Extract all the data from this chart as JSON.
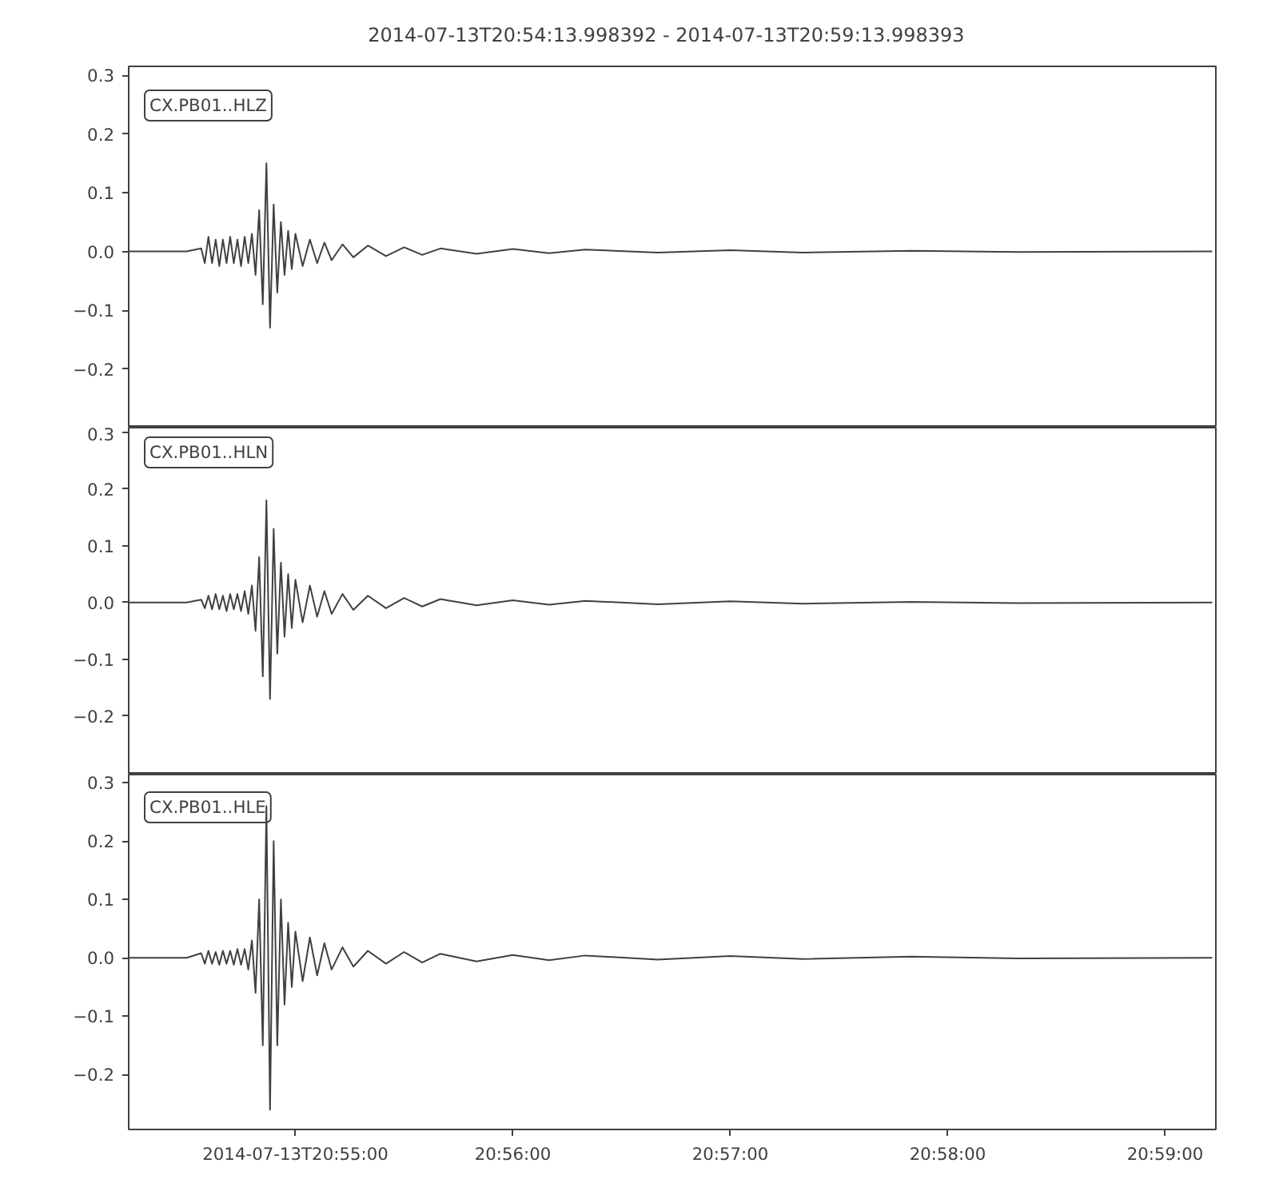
{
  "chart_data": [
    {
      "type": "line",
      "title": "2014-07-13T20:54:13.998392  -  2014-07-13T20:59:13.998393",
      "annotations": [
        "CX.PB01..HLZ"
      ],
      "tick_labels": "y",
      "grid": false,
      "xlim": [
        "2014-07-13T20:54:13.998392",
        "2014-07-13T20:59:13.998393"
      ],
      "ylim": [
        -0.3,
        0.315
      ],
      "yticks": [
        {
          "value": -0.2,
          "label": "−0.2"
        },
        {
          "value": -0.1,
          "label": "−0.1"
        },
        {
          "value": 0,
          "label": "0.0"
        },
        {
          "value": 0.1,
          "label": "0.1"
        },
        {
          "value": 0.2,
          "label": "0.2"
        },
        {
          "value": 0.3,
          "label": "0.3"
        }
      ],
      "x": [
        "2014-07-13T20:54:14",
        "2014-07-13T20:54:30",
        "2014-07-13T20:54:34",
        "2014-07-13T20:54:35",
        "2014-07-13T20:54:36",
        "2014-07-13T20:54:37",
        "2014-07-13T20:54:38",
        "2014-07-13T20:54:39",
        "2014-07-13T20:54:40",
        "2014-07-13T20:54:41",
        "2014-07-13T20:54:42",
        "2014-07-13T20:54:43",
        "2014-07-13T20:54:44",
        "2014-07-13T20:54:45",
        "2014-07-13T20:54:46",
        "2014-07-13T20:54:47",
        "2014-07-13T20:54:48",
        "2014-07-13T20:54:49",
        "2014-07-13T20:54:50",
        "2014-07-13T20:54:51",
        "2014-07-13T20:54:52",
        "2014-07-13T20:54:53",
        "2014-07-13T20:54:54",
        "2014-07-13T20:54:55",
        "2014-07-13T20:54:56",
        "2014-07-13T20:54:57",
        "2014-07-13T20:54:58",
        "2014-07-13T20:54:59",
        "2014-07-13T20:55:00",
        "2014-07-13T20:55:02",
        "2014-07-13T20:55:04",
        "2014-07-13T20:55:06",
        "2014-07-13T20:55:08",
        "2014-07-13T20:55:10",
        "2014-07-13T20:55:13",
        "2014-07-13T20:55:16",
        "2014-07-13T20:55:20",
        "2014-07-13T20:55:25",
        "2014-07-13T20:55:30",
        "2014-07-13T20:55:35",
        "2014-07-13T20:55:40",
        "2014-07-13T20:55:50",
        "2014-07-13T20:56:00",
        "2014-07-13T20:56:10",
        "2014-07-13T20:56:20",
        "2014-07-13T20:56:40",
        "2014-07-13T20:57:00",
        "2014-07-13T20:57:20",
        "2014-07-13T20:57:50",
        "2014-07-13T20:58:20",
        "2014-07-13T20:59:13"
      ],
      "series": [
        {
          "color": "#404040",
          "values": [
            0,
            0,
            0.005,
            -0.02,
            0.025,
            -0.02,
            0.02,
            -0.025,
            0.02,
            -0.02,
            0.025,
            -0.02,
            0.02,
            -0.025,
            0.025,
            -0.02,
            0.03,
            -0.04,
            0.07,
            -0.09,
            0.15,
            -0.13,
            0.08,
            -0.07,
            0.05,
            -0.04,
            0.035,
            -0.03,
            0.03,
            -0.025,
            0.02,
            -0.02,
            0.015,
            -0.015,
            0.012,
            -0.01,
            0.01,
            -0.008,
            0.007,
            -0.006,
            0.005,
            -0.004,
            0.004,
            -0.003,
            0.003,
            -0.002,
            0.002,
            -0.002,
            0.001,
            -0.001,
            0
          ]
        }
      ]
    },
    {
      "type": "line",
      "annotations": [
        "CX.PB01..HLN"
      ],
      "tick_labels": "y",
      "grid": false,
      "xlim": [
        "2014-07-13T20:54:13.998392",
        "2014-07-13T20:59:13.998393"
      ],
      "ylim": [
        -0.303,
        0.308
      ],
      "yticks": [
        {
          "value": -0.2,
          "label": "−0.2"
        },
        {
          "value": -0.1,
          "label": "−0.1"
        },
        {
          "value": 0,
          "label": "0.0"
        },
        {
          "value": 0.1,
          "label": "0.1"
        },
        {
          "value": 0.2,
          "label": "0.2"
        },
        {
          "value": 0.3,
          "label": "0.3"
        }
      ],
      "x": [
        "2014-07-13T20:54:14",
        "2014-07-13T20:54:30",
        "2014-07-13T20:54:34",
        "2014-07-13T20:54:35",
        "2014-07-13T20:54:36",
        "2014-07-13T20:54:37",
        "2014-07-13T20:54:38",
        "2014-07-13T20:54:39",
        "2014-07-13T20:54:40",
        "2014-07-13T20:54:41",
        "2014-07-13T20:54:42",
        "2014-07-13T20:54:43",
        "2014-07-13T20:54:44",
        "2014-07-13T20:54:45",
        "2014-07-13T20:54:46",
        "2014-07-13T20:54:47",
        "2014-07-13T20:54:48",
        "2014-07-13T20:54:49",
        "2014-07-13T20:54:50",
        "2014-07-13T20:54:51",
        "2014-07-13T20:54:52",
        "2014-07-13T20:54:53",
        "2014-07-13T20:54:54",
        "2014-07-13T20:54:55",
        "2014-07-13T20:54:56",
        "2014-07-13T20:54:57",
        "2014-07-13T20:54:58",
        "2014-07-13T20:54:59",
        "2014-07-13T20:55:00",
        "2014-07-13T20:55:02",
        "2014-07-13T20:55:04",
        "2014-07-13T20:55:06",
        "2014-07-13T20:55:08",
        "2014-07-13T20:55:10",
        "2014-07-13T20:55:13",
        "2014-07-13T20:55:16",
        "2014-07-13T20:55:20",
        "2014-07-13T20:55:25",
        "2014-07-13T20:55:30",
        "2014-07-13T20:55:35",
        "2014-07-13T20:55:40",
        "2014-07-13T20:55:50",
        "2014-07-13T20:56:00",
        "2014-07-13T20:56:10",
        "2014-07-13T20:56:20",
        "2014-07-13T20:56:40",
        "2014-07-13T20:57:00",
        "2014-07-13T20:57:20",
        "2014-07-13T20:57:50",
        "2014-07-13T20:58:20",
        "2014-07-13T20:59:13"
      ],
      "series": [
        {
          "color": "#404040",
          "values": [
            0,
            0,
            0.005,
            -0.01,
            0.012,
            -0.012,
            0.015,
            -0.012,
            0.012,
            -0.015,
            0.015,
            -0.012,
            0.015,
            -0.015,
            0.02,
            -0.02,
            0.03,
            -0.05,
            0.08,
            -0.13,
            0.18,
            -0.17,
            0.13,
            -0.09,
            0.07,
            -0.06,
            0.05,
            -0.045,
            0.04,
            -0.035,
            0.03,
            -0.025,
            0.02,
            -0.02,
            0.015,
            -0.013,
            0.012,
            -0.01,
            0.008,
            -0.007,
            0.006,
            -0.005,
            0.004,
            -0.004,
            0.003,
            -0.003,
            0.002,
            -0.002,
            0.001,
            -0.001,
            0
          ]
        }
      ]
    },
    {
      "type": "line",
      "annotations": [
        "CX.PB01..HLE"
      ],
      "grid": false,
      "xlim": [
        "2014-07-13T20:54:13.998392",
        "2014-07-13T20:59:13.998393"
      ],
      "ylim": [
        -0.294,
        0.314
      ],
      "xticks": [
        {
          "value": "2014-07-13T20:55:00",
          "label": "2014-07-13T20:55:00"
        },
        {
          "value": "2014-07-13T20:56:00",
          "label": "20:56:00"
        },
        {
          "value": "2014-07-13T20:57:00",
          "label": "20:57:00"
        },
        {
          "value": "2014-07-13T20:58:00",
          "label": "20:58:00"
        },
        {
          "value": "2014-07-13T20:59:00",
          "label": "20:59:00"
        }
      ],
      "yticks": [
        {
          "value": -0.2,
          "label": "−0.2"
        },
        {
          "value": -0.1,
          "label": "−0.1"
        },
        {
          "value": 0,
          "label": "0.0"
        },
        {
          "value": 0.1,
          "label": "0.1"
        },
        {
          "value": 0.2,
          "label": "0.2"
        },
        {
          "value": 0.3,
          "label": "0.3"
        }
      ],
      "x": [
        "2014-07-13T20:54:14",
        "2014-07-13T20:54:30",
        "2014-07-13T20:54:34",
        "2014-07-13T20:54:35",
        "2014-07-13T20:54:36",
        "2014-07-13T20:54:37",
        "2014-07-13T20:54:38",
        "2014-07-13T20:54:39",
        "2014-07-13T20:54:40",
        "2014-07-13T20:54:41",
        "2014-07-13T20:54:42",
        "2014-07-13T20:54:43",
        "2014-07-13T20:54:44",
        "2014-07-13T20:54:45",
        "2014-07-13T20:54:46",
        "2014-07-13T20:54:47",
        "2014-07-13T20:54:48",
        "2014-07-13T20:54:49",
        "2014-07-13T20:54:50",
        "2014-07-13T20:54:51",
        "2014-07-13T20:54:52",
        "2014-07-13T20:54:53",
        "2014-07-13T20:54:54",
        "2014-07-13T20:54:55",
        "2014-07-13T20:54:56",
        "2014-07-13T20:54:57",
        "2014-07-13T20:54:58",
        "2014-07-13T20:54:59",
        "2014-07-13T20:55:00",
        "2014-07-13T20:55:02",
        "2014-07-13T20:55:04",
        "2014-07-13T20:55:06",
        "2014-07-13T20:55:08",
        "2014-07-13T20:55:10",
        "2014-07-13T20:55:13",
        "2014-07-13T20:55:16",
        "2014-07-13T20:55:20",
        "2014-07-13T20:55:25",
        "2014-07-13T20:55:30",
        "2014-07-13T20:55:35",
        "2014-07-13T20:55:40",
        "2014-07-13T20:55:50",
        "2014-07-13T20:56:00",
        "2014-07-13T20:56:10",
        "2014-07-13T20:56:20",
        "2014-07-13T20:56:40",
        "2014-07-13T20:57:00",
        "2014-07-13T20:57:20",
        "2014-07-13T20:57:50",
        "2014-07-13T20:58:20",
        "2014-07-13T20:59:13"
      ],
      "series": [
        {
          "color": "#404040",
          "values": [
            0,
            0,
            0.008,
            -0.01,
            0.012,
            -0.01,
            0.01,
            -0.012,
            0.012,
            -0.01,
            0.012,
            -0.012,
            0.015,
            -0.012,
            0.015,
            -0.02,
            0.03,
            -0.06,
            0.1,
            -0.15,
            0.26,
            -0.26,
            0.2,
            -0.15,
            0.1,
            -0.08,
            0.06,
            -0.05,
            0.045,
            -0.04,
            0.035,
            -0.03,
            0.025,
            -0.02,
            0.018,
            -0.015,
            0.012,
            -0.01,
            0.01,
            -0.008,
            0.007,
            -0.006,
            0.005,
            -0.004,
            0.004,
            -0.003,
            0.003,
            -0.002,
            0.002,
            -0.001,
            0
          ]
        }
      ]
    }
  ]
}
